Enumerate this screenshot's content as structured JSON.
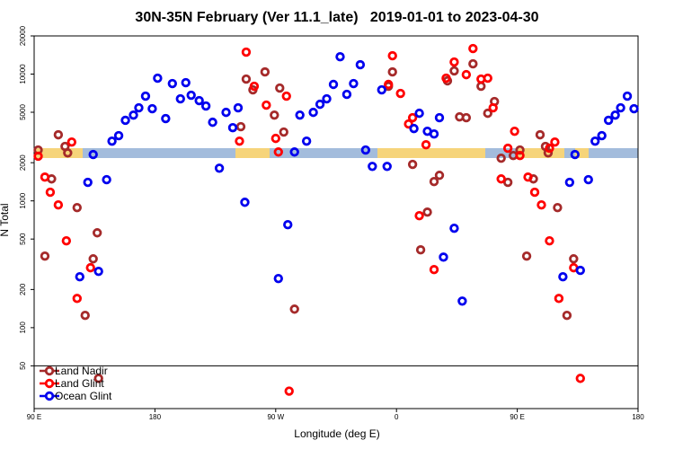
{
  "chart_data": {
    "type": "scatter",
    "title": "30N-35N February (Ver 11.1_late)   2019-01-01 to 2023-04-30",
    "x_label": "Longitude (deg E)",
    "y_label": "N Total",
    "xlim": [
      90,
      540
    ],
    "xticks": [
      {
        "value": 90,
        "label": "90 E"
      },
      {
        "value": 180,
        "label": "180"
      },
      {
        "value": 270,
        "label": "90 W"
      },
      {
        "value": 360,
        "label": "0"
      },
      {
        "value": 450,
        "label": "90 E"
      },
      {
        "value": 540,
        "label": "180"
      }
    ],
    "ylim": [
      23,
      20000
    ],
    "log_y": true,
    "yticks": [
      50,
      100,
      200,
      500,
      1000,
      2000,
      5000,
      10000,
      20000
    ],
    "legend": "bottom-left",
    "series": [
      {
        "name": "Land Nadir",
        "color": "#a52a2a",
        "x": [
          93,
          98,
          103,
          108,
          113,
          115,
          122,
          128,
          134,
          137,
          138,
          244,
          248,
          253,
          262,
          269,
          273,
          276,
          284,
          354,
          357,
          372,
          378,
          383,
          388,
          392,
          398,
          403,
          407,
          412,
          417,
          423,
          428,
          433,
          438,
          443,
          447,
          452,
          457,
          462,
          467,
          471,
          473,
          480,
          487,
          492
        ],
        "values": [
          2520,
          367,
          1490,
          3320,
          2690,
          2390,
          885,
          125,
          349,
          560,
          39.8,
          3850,
          9140,
          7510,
          10400,
          4750,
          7760,
          3490,
          140,
          8020,
          10400,
          1940,
          411,
          815,
          1420,
          1590,
          8850,
          10600,
          4600,
          4530,
          12050,
          8020,
          4910,
          6080,
          2170,
          1400,
          2280,
          2520,
          367,
          1490,
          3320,
          2690,
          2390,
          885,
          125,
          349
        ]
      },
      {
        "name": "Land Glint",
        "color": "#ff0000",
        "x": [
          93,
          98,
          102,
          108,
          114,
          118,
          122,
          132,
          243,
          248,
          254,
          263,
          270,
          272,
          278,
          280,
          354,
          357,
          363,
          369,
          372,
          377,
          382,
          388,
          397,
          403,
          412,
          417,
          423,
          428,
          432,
          438,
          443,
          448,
          452,
          458,
          463,
          468,
          474,
          474,
          478,
          481,
          492,
          497
        ],
        "values": [
          2250,
          1540,
          1170,
          929,
          484,
          2910,
          170,
          297,
          2960,
          14900,
          8020,
          5690,
          3110,
          2430,
          6700,
          31.6,
          8290,
          13950,
          7040,
          4040,
          4530,
          764,
          2770,
          287,
          9280,
          12450,
          9900,
          15900,
          9140,
          9280,
          5420,
          1490,
          2600,
          3540,
          2280,
          1540,
          1170,
          929,
          484,
          2600,
          2910,
          170,
          297,
          39.8
        ]
      },
      {
        "name": "Ocean Glint",
        "color": "#0000ee",
        "x": [
          124,
          130,
          134,
          138,
          144,
          148,
          153,
          158,
          164,
          168,
          173,
          178,
          182,
          188,
          193,
          199,
          203,
          207,
          213,
          218,
          223,
          228,
          233,
          238,
          242,
          247,
          272,
          279,
          284,
          288,
          293,
          298,
          303,
          308,
          313,
          318,
          323,
          328,
          333,
          337,
          342,
          349,
          353,
          373,
          377,
          383,
          388,
          392,
          395,
          403,
          409,
          484,
          489,
          493,
          497,
          503,
          508,
          513,
          518,
          523,
          527,
          532,
          537
        ],
        "values": [
          252,
          1400,
          2320,
          278,
          1470,
          2960,
          3270,
          4320,
          4750,
          5420,
          6700,
          5330,
          9280,
          4460,
          8420,
          6380,
          8560,
          6810,
          6180,
          5600,
          4170,
          1810,
          4990,
          3780,
          5420,
          975,
          244,
          649,
          2430,
          4750,
          2960,
          4990,
          5780,
          6380,
          8290,
          13700,
          6920,
          8420,
          11850,
          2520,
          1870,
          7510,
          1870,
          3720,
          4910,
          3540,
          3370,
          4530,
          360,
          608,
          162,
          252,
          1400,
          2320,
          283,
          1470,
          2960,
          3270,
          4320,
          4750,
          5420,
          6700,
          5330
        ]
      }
    ]
  }
}
